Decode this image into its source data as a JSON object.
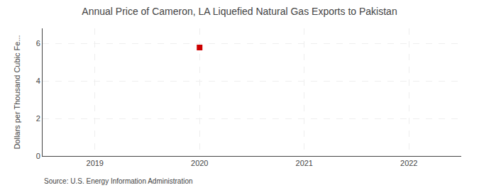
{
  "chart_data": {
    "type": "scatter",
    "title": "Annual Price of Cameron, LA Liquefied Natural Gas Exports to Pakistan",
    "ylabel": "Dollars per Thousand Cubic Fe...",
    "source": "Source: U.S. Energy Information Administration",
    "x": [
      2020
    ],
    "values": [
      5.78
    ],
    "color": "#cc0000",
    "marker": "square",
    "xlim": [
      2018.5,
      2022.5
    ],
    "xticks": [
      2019,
      2020,
      2021,
      2022
    ],
    "ylim": [
      0,
      6.8
    ],
    "yticks": [
      0,
      2,
      4,
      6
    ],
    "grid": true
  }
}
